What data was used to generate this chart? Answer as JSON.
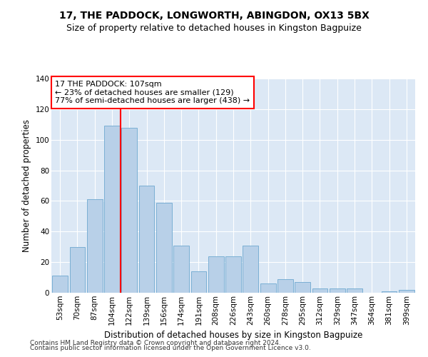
{
  "title": "17, THE PADDOCK, LONGWORTH, ABINGDON, OX13 5BX",
  "subtitle": "Size of property relative to detached houses in Kingston Bagpuize",
  "xlabel": "Distribution of detached houses by size in Kingston Bagpuize",
  "ylabel": "Number of detached properties",
  "footnote1": "Contains HM Land Registry data © Crown copyright and database right 2024.",
  "footnote2": "Contains public sector information licensed under the Open Government Licence v3.0.",
  "categories": [
    "53sqm",
    "70sqm",
    "87sqm",
    "104sqm",
    "122sqm",
    "139sqm",
    "156sqm",
    "174sqm",
    "191sqm",
    "208sqm",
    "226sqm",
    "243sqm",
    "260sqm",
    "278sqm",
    "295sqm",
    "312sqm",
    "329sqm",
    "347sqm",
    "364sqm",
    "381sqm",
    "399sqm"
  ],
  "values": [
    11,
    30,
    61,
    109,
    108,
    70,
    59,
    31,
    14,
    24,
    24,
    31,
    6,
    9,
    7,
    3,
    3,
    3,
    0,
    1,
    2
  ],
  "bar_color": "#b8d0e8",
  "bar_edge_color": "#7aafd4",
  "vline_x": 3.5,
  "vline_color": "red",
  "annotation_text": "17 THE PADDOCK: 107sqm\n← 23% of detached houses are smaller (129)\n77% of semi-detached houses are larger (438) →",
  "ylim": [
    0,
    140
  ],
  "yticks": [
    0,
    20,
    40,
    60,
    80,
    100,
    120,
    140
  ],
  "background_color": "#dce8f5",
  "grid_color": "#ffffff",
  "title_fontsize": 10,
  "subtitle_fontsize": 9,
  "xlabel_fontsize": 8.5,
  "ylabel_fontsize": 8.5,
  "tick_fontsize": 7.5,
  "footnote_fontsize": 6.5,
  "annot_fontsize": 8
}
